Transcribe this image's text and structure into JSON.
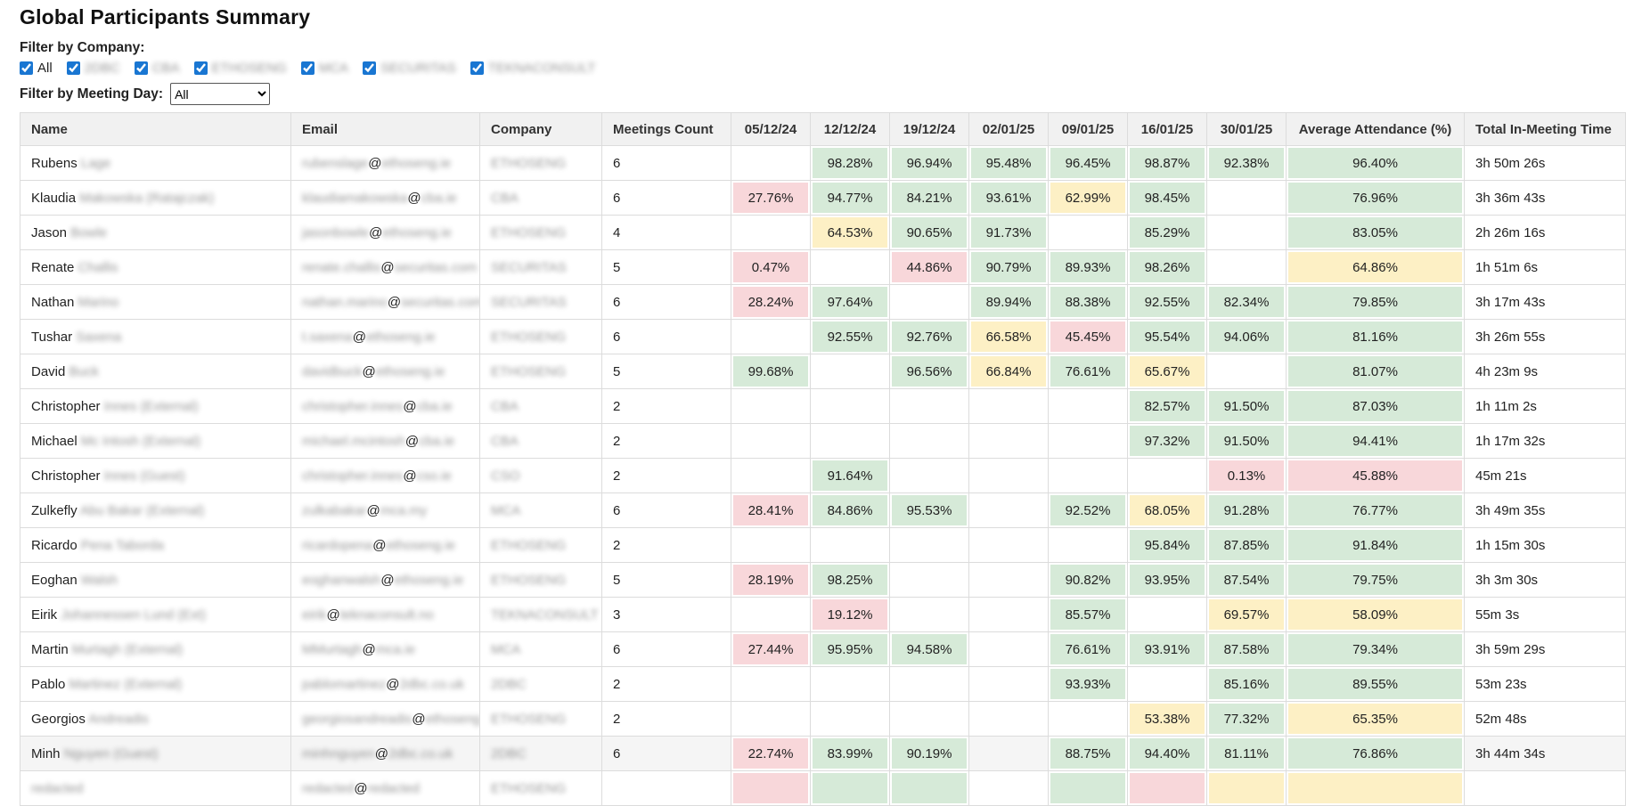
{
  "page": {
    "title": "Global Participants Summary"
  },
  "filters": {
    "company_label": "Filter by Company:",
    "companies": [
      {
        "label": "All",
        "checked": true,
        "blurred": false
      },
      {
        "label": "2DBC",
        "checked": true,
        "blurred": true
      },
      {
        "label": "CBA",
        "checked": true,
        "blurred": true
      },
      {
        "label": "ETHOSENG",
        "checked": true,
        "blurred": true
      },
      {
        "label": "MCA",
        "checked": true,
        "blurred": true
      },
      {
        "label": "SECURITAS",
        "checked": true,
        "blurred": true
      },
      {
        "label": "TEKNACONSULT",
        "checked": true,
        "blurred": true
      }
    ],
    "day_label": "Filter by Meeting Day:",
    "day_value": "All",
    "day_options": [
      "All"
    ]
  },
  "colors": {
    "green": "#d6ead8",
    "yellow": "#fdf0c5",
    "red": "#f8d7da",
    "header_bg": "#f1f1f1",
    "checkbox_accent": "#1976d2"
  },
  "table": {
    "columns": [
      {
        "label": "Name",
        "align": "left"
      },
      {
        "label": "Email",
        "align": "left"
      },
      {
        "label": "Company",
        "align": "left"
      },
      {
        "label": "Meetings Count",
        "align": "left"
      },
      {
        "label": "05/12/24",
        "align": "center"
      },
      {
        "label": "12/12/24",
        "align": "center"
      },
      {
        "label": "19/12/24",
        "align": "center"
      },
      {
        "label": "02/01/25",
        "align": "center"
      },
      {
        "label": "09/01/25",
        "align": "center"
      },
      {
        "label": "16/01/25",
        "align": "center"
      },
      {
        "label": "30/01/25",
        "align": "center"
      },
      {
        "label": "Average Attendance (%)",
        "align": "center"
      },
      {
        "label": "Total In-Meeting Time",
        "align": "left"
      }
    ],
    "rows": [
      {
        "first_name": "Rubens",
        "name_rest_redacted": "Lage",
        "email_local_redacted": "rubenslage",
        "email_domain_redacted": "ethoseng.ie",
        "company_redacted": "ETHOSENG",
        "meetings": "6",
        "cells": [
          {
            "v": "",
            "c": ""
          },
          {
            "v": "98.28%",
            "c": "g"
          },
          {
            "v": "96.94%",
            "c": "g"
          },
          {
            "v": "95.48%",
            "c": "g"
          },
          {
            "v": "96.45%",
            "c": "g"
          },
          {
            "v": "98.87%",
            "c": "g"
          },
          {
            "v": "92.38%",
            "c": "g"
          }
        ],
        "avg": {
          "v": "96.40%",
          "c": "g"
        },
        "total": "3h 50m 26s",
        "tint": false
      },
      {
        "first_name": "Klaudia",
        "name_rest_redacted": "Makowska (Ratajczak)",
        "email_local_redacted": "klaudiamakowska",
        "email_domain_redacted": "cba.ie",
        "company_redacted": "CBA",
        "meetings": "6",
        "cells": [
          {
            "v": "27.76%",
            "c": "r"
          },
          {
            "v": "94.77%",
            "c": "g"
          },
          {
            "v": "84.21%",
            "c": "g"
          },
          {
            "v": "93.61%",
            "c": "g"
          },
          {
            "v": "62.99%",
            "c": "y"
          },
          {
            "v": "98.45%",
            "c": "g"
          },
          {
            "v": "",
            "c": ""
          }
        ],
        "avg": {
          "v": "76.96%",
          "c": "g"
        },
        "total": "3h 36m 43s",
        "tint": false
      },
      {
        "first_name": "Jason",
        "name_rest_redacted": "Bowle",
        "email_local_redacted": "jasonbowle",
        "email_domain_redacted": "ethoseng.ie",
        "company_redacted": "ETHOSENG",
        "meetings": "4",
        "cells": [
          {
            "v": "",
            "c": ""
          },
          {
            "v": "64.53%",
            "c": "y"
          },
          {
            "v": "90.65%",
            "c": "g"
          },
          {
            "v": "91.73%",
            "c": "g"
          },
          {
            "v": "",
            "c": ""
          },
          {
            "v": "85.29%",
            "c": "g"
          },
          {
            "v": "",
            "c": ""
          }
        ],
        "avg": {
          "v": "83.05%",
          "c": "g"
        },
        "total": "2h 26m 16s",
        "tint": false
      },
      {
        "first_name": "Renate",
        "name_rest_redacted": "Challis",
        "email_local_redacted": "renate.challis",
        "email_domain_redacted": "securitas.com",
        "company_redacted": "SECURITAS",
        "meetings": "5",
        "cells": [
          {
            "v": "0.47%",
            "c": "r"
          },
          {
            "v": "",
            "c": ""
          },
          {
            "v": "44.86%",
            "c": "r"
          },
          {
            "v": "90.79%",
            "c": "g"
          },
          {
            "v": "89.93%",
            "c": "g"
          },
          {
            "v": "98.26%",
            "c": "g"
          },
          {
            "v": "",
            "c": ""
          }
        ],
        "avg": {
          "v": "64.86%",
          "c": "y"
        },
        "total": "1h 51m 6s",
        "tint": false
      },
      {
        "first_name": "Nathan",
        "name_rest_redacted": "Marino",
        "email_local_redacted": "nathan.marino",
        "email_domain_redacted": "securitas.com",
        "company_redacted": "SECURITAS",
        "meetings": "6",
        "cells": [
          {
            "v": "28.24%",
            "c": "r"
          },
          {
            "v": "97.64%",
            "c": "g"
          },
          {
            "v": "",
            "c": ""
          },
          {
            "v": "89.94%",
            "c": "g"
          },
          {
            "v": "88.38%",
            "c": "g"
          },
          {
            "v": "92.55%",
            "c": "g"
          },
          {
            "v": "82.34%",
            "c": "g"
          }
        ],
        "avg": {
          "v": "79.85%",
          "c": "g"
        },
        "total": "3h 17m 43s",
        "tint": false
      },
      {
        "first_name": "Tushar",
        "name_rest_redacted": "Saxena",
        "email_local_redacted": "t.saxena",
        "email_domain_redacted": "ethoseng.ie",
        "company_redacted": "ETHOSENG",
        "meetings": "6",
        "cells": [
          {
            "v": "",
            "c": ""
          },
          {
            "v": "92.55%",
            "c": "g"
          },
          {
            "v": "92.76%",
            "c": "g"
          },
          {
            "v": "66.58%",
            "c": "y"
          },
          {
            "v": "45.45%",
            "c": "r"
          },
          {
            "v": "95.54%",
            "c": "g"
          },
          {
            "v": "94.06%",
            "c": "g"
          }
        ],
        "avg": {
          "v": "81.16%",
          "c": "g"
        },
        "total": "3h 26m 55s",
        "tint": false
      },
      {
        "first_name": "David",
        "name_rest_redacted": "Buck",
        "email_local_redacted": "davidbuck",
        "email_domain_redacted": "ethoseng.ie",
        "company_redacted": "ETHOSENG",
        "meetings": "5",
        "cells": [
          {
            "v": "99.68%",
            "c": "g"
          },
          {
            "v": "",
            "c": ""
          },
          {
            "v": "96.56%",
            "c": "g"
          },
          {
            "v": "66.84%",
            "c": "y"
          },
          {
            "v": "76.61%",
            "c": "g"
          },
          {
            "v": "65.67%",
            "c": "y"
          },
          {
            "v": "",
            "c": ""
          }
        ],
        "avg": {
          "v": "81.07%",
          "c": "g"
        },
        "total": "4h 23m 9s",
        "tint": false
      },
      {
        "first_name": "Christopher",
        "name_rest_redacted": "Innes (External)",
        "email_local_redacted": "christopher.innes",
        "email_domain_redacted": "cba.ie",
        "company_redacted": "CBA",
        "meetings": "2",
        "cells": [
          {
            "v": "",
            "c": ""
          },
          {
            "v": "",
            "c": ""
          },
          {
            "v": "",
            "c": ""
          },
          {
            "v": "",
            "c": ""
          },
          {
            "v": "",
            "c": ""
          },
          {
            "v": "82.57%",
            "c": "g"
          },
          {
            "v": "91.50%",
            "c": "g"
          }
        ],
        "avg": {
          "v": "87.03%",
          "c": "g"
        },
        "total": "1h 11m 2s",
        "tint": false
      },
      {
        "first_name": "Michael",
        "name_rest_redacted": "Mc Intosh (External)",
        "email_local_redacted": "michael.mcintosh",
        "email_domain_redacted": "cba.ie",
        "company_redacted": "CBA",
        "meetings": "2",
        "cells": [
          {
            "v": "",
            "c": ""
          },
          {
            "v": "",
            "c": ""
          },
          {
            "v": "",
            "c": ""
          },
          {
            "v": "",
            "c": ""
          },
          {
            "v": "",
            "c": ""
          },
          {
            "v": "97.32%",
            "c": "g"
          },
          {
            "v": "91.50%",
            "c": "g"
          }
        ],
        "avg": {
          "v": "94.41%",
          "c": "g"
        },
        "total": "1h 17m 32s",
        "tint": false
      },
      {
        "first_name": "Christopher",
        "name_rest_redacted": "Innes (Guest)",
        "email_local_redacted": "christopher.innes",
        "email_domain_redacted": "cso.ie",
        "company_redacted": "CSO",
        "meetings": "2",
        "cells": [
          {
            "v": "",
            "c": ""
          },
          {
            "v": "91.64%",
            "c": "g"
          },
          {
            "v": "",
            "c": ""
          },
          {
            "v": "",
            "c": ""
          },
          {
            "v": "",
            "c": ""
          },
          {
            "v": "",
            "c": ""
          },
          {
            "v": "0.13%",
            "c": "r"
          }
        ],
        "avg": {
          "v": "45.88%",
          "c": "r"
        },
        "total": "45m 21s",
        "tint": false
      },
      {
        "first_name": "Zulkefly",
        "name_rest_redacted": "Abu Bakar (External)",
        "email_local_redacted": "zulkabakar",
        "email_domain_redacted": "mca.my",
        "company_redacted": "MCA",
        "meetings": "6",
        "cells": [
          {
            "v": "28.41%",
            "c": "r"
          },
          {
            "v": "84.86%",
            "c": "g"
          },
          {
            "v": "95.53%",
            "c": "g"
          },
          {
            "v": "",
            "c": ""
          },
          {
            "v": "92.52%",
            "c": "g"
          },
          {
            "v": "68.05%",
            "c": "y"
          },
          {
            "v": "91.28%",
            "c": "g"
          }
        ],
        "avg": {
          "v": "76.77%",
          "c": "g"
        },
        "total": "3h 49m 35s",
        "tint": false
      },
      {
        "first_name": "Ricardo",
        "name_rest_redacted": "Pena Taborda",
        "email_local_redacted": "ricardopena",
        "email_domain_redacted": "ethoseng.ie",
        "company_redacted": "ETHOSENG",
        "meetings": "2",
        "cells": [
          {
            "v": "",
            "c": ""
          },
          {
            "v": "",
            "c": ""
          },
          {
            "v": "",
            "c": ""
          },
          {
            "v": "",
            "c": ""
          },
          {
            "v": "",
            "c": ""
          },
          {
            "v": "95.84%",
            "c": "g"
          },
          {
            "v": "87.85%",
            "c": "g"
          }
        ],
        "avg": {
          "v": "91.84%",
          "c": "g"
        },
        "total": "1h 15m 30s",
        "tint": false
      },
      {
        "first_name": "Eoghan",
        "name_rest_redacted": "Walsh",
        "email_local_redacted": "eoghanwalsh",
        "email_domain_redacted": "ethoseng.ie",
        "company_redacted": "ETHOSENG",
        "meetings": "5",
        "cells": [
          {
            "v": "28.19%",
            "c": "r"
          },
          {
            "v": "98.25%",
            "c": "g"
          },
          {
            "v": "",
            "c": ""
          },
          {
            "v": "",
            "c": ""
          },
          {
            "v": "90.82%",
            "c": "g"
          },
          {
            "v": "93.95%",
            "c": "g"
          },
          {
            "v": "87.54%",
            "c": "g"
          }
        ],
        "avg": {
          "v": "79.75%",
          "c": "g"
        },
        "total": "3h 3m 30s",
        "tint": false
      },
      {
        "first_name": "Eirik",
        "name_rest_redacted": "Johannessen Lund (Ext)",
        "email_local_redacted": "eirik",
        "email_domain_redacted": "teknaconsult.no",
        "company_redacted": "TEKNACONSULT",
        "meetings": "3",
        "cells": [
          {
            "v": "",
            "c": ""
          },
          {
            "v": "19.12%",
            "c": "r"
          },
          {
            "v": "",
            "c": ""
          },
          {
            "v": "",
            "c": ""
          },
          {
            "v": "85.57%",
            "c": "g"
          },
          {
            "v": "",
            "c": ""
          },
          {
            "v": "69.57%",
            "c": "y"
          }
        ],
        "avg": {
          "v": "58.09%",
          "c": "y"
        },
        "total": "55m 3s",
        "tint": false
      },
      {
        "first_name": "Martin",
        "name_rest_redacted": "Murtagh (External)",
        "email_local_redacted": "MMurtagh",
        "email_domain_redacted": "mca.ie",
        "company_redacted": "MCA",
        "meetings": "6",
        "cells": [
          {
            "v": "27.44%",
            "c": "r"
          },
          {
            "v": "95.95%",
            "c": "g"
          },
          {
            "v": "94.58%",
            "c": "g"
          },
          {
            "v": "",
            "c": ""
          },
          {
            "v": "76.61%",
            "c": "g"
          },
          {
            "v": "93.91%",
            "c": "g"
          },
          {
            "v": "87.58%",
            "c": "g"
          }
        ],
        "avg": {
          "v": "79.34%",
          "c": "g"
        },
        "total": "3h 59m 29s",
        "tint": false
      },
      {
        "first_name": "Pablo",
        "name_rest_redacted": "Martinez (External)",
        "email_local_redacted": "pablomartinez",
        "email_domain_redacted": "2dbc.co.uk",
        "company_redacted": "2DBC",
        "meetings": "2",
        "cells": [
          {
            "v": "",
            "c": ""
          },
          {
            "v": "",
            "c": ""
          },
          {
            "v": "",
            "c": ""
          },
          {
            "v": "",
            "c": ""
          },
          {
            "v": "93.93%",
            "c": "g"
          },
          {
            "v": "",
            "c": ""
          },
          {
            "v": "85.16%",
            "c": "g"
          }
        ],
        "avg": {
          "v": "89.55%",
          "c": "g"
        },
        "total": "53m 23s",
        "tint": false
      },
      {
        "first_name": "Georgios",
        "name_rest_redacted": "Andreadis",
        "email_local_redacted": "georgiosandreadis",
        "email_domain_redacted": "ethoseng.ie",
        "company_redacted": "ETHOSENG",
        "meetings": "2",
        "cells": [
          {
            "v": "",
            "c": ""
          },
          {
            "v": "",
            "c": ""
          },
          {
            "v": "",
            "c": ""
          },
          {
            "v": "",
            "c": ""
          },
          {
            "v": "",
            "c": ""
          },
          {
            "v": "53.38%",
            "c": "y"
          },
          {
            "v": "77.32%",
            "c": "g"
          }
        ],
        "avg": {
          "v": "65.35%",
          "c": "y"
        },
        "total": "52m 48s",
        "tint": false
      },
      {
        "first_name": "Minh",
        "name_rest_redacted": "Nguyen (Guest)",
        "email_local_redacted": "minhnguyen",
        "email_domain_redacted": "2dbc.co.uk",
        "company_redacted": "2DBC",
        "meetings": "6",
        "cells": [
          {
            "v": "22.74%",
            "c": "r"
          },
          {
            "v": "83.99%",
            "c": "g"
          },
          {
            "v": "90.19%",
            "c": "g"
          },
          {
            "v": "",
            "c": ""
          },
          {
            "v": "88.75%",
            "c": "g"
          },
          {
            "v": "94.40%",
            "c": "g"
          },
          {
            "v": "81.11%",
            "c": "g"
          }
        ],
        "avg": {
          "v": "76.86%",
          "c": "g"
        },
        "total": "3h 44m 34s",
        "tint": true
      },
      {
        "first_name": "",
        "name_rest_redacted": "redacted",
        "email_local_redacted": "redacted",
        "email_domain_redacted": "redacted",
        "company_redacted": "ETHOSENG",
        "meetings": "",
        "cells": [
          {
            "v": "",
            "c": "r"
          },
          {
            "v": "",
            "c": "g"
          },
          {
            "v": "",
            "c": "g"
          },
          {
            "v": "",
            "c": ""
          },
          {
            "v": "",
            "c": "g"
          },
          {
            "v": "",
            "c": "r"
          },
          {
            "v": "",
            "c": "y"
          }
        ],
        "avg": {
          "v": "",
          "c": "y"
        },
        "total": "",
        "tint": false
      }
    ]
  }
}
